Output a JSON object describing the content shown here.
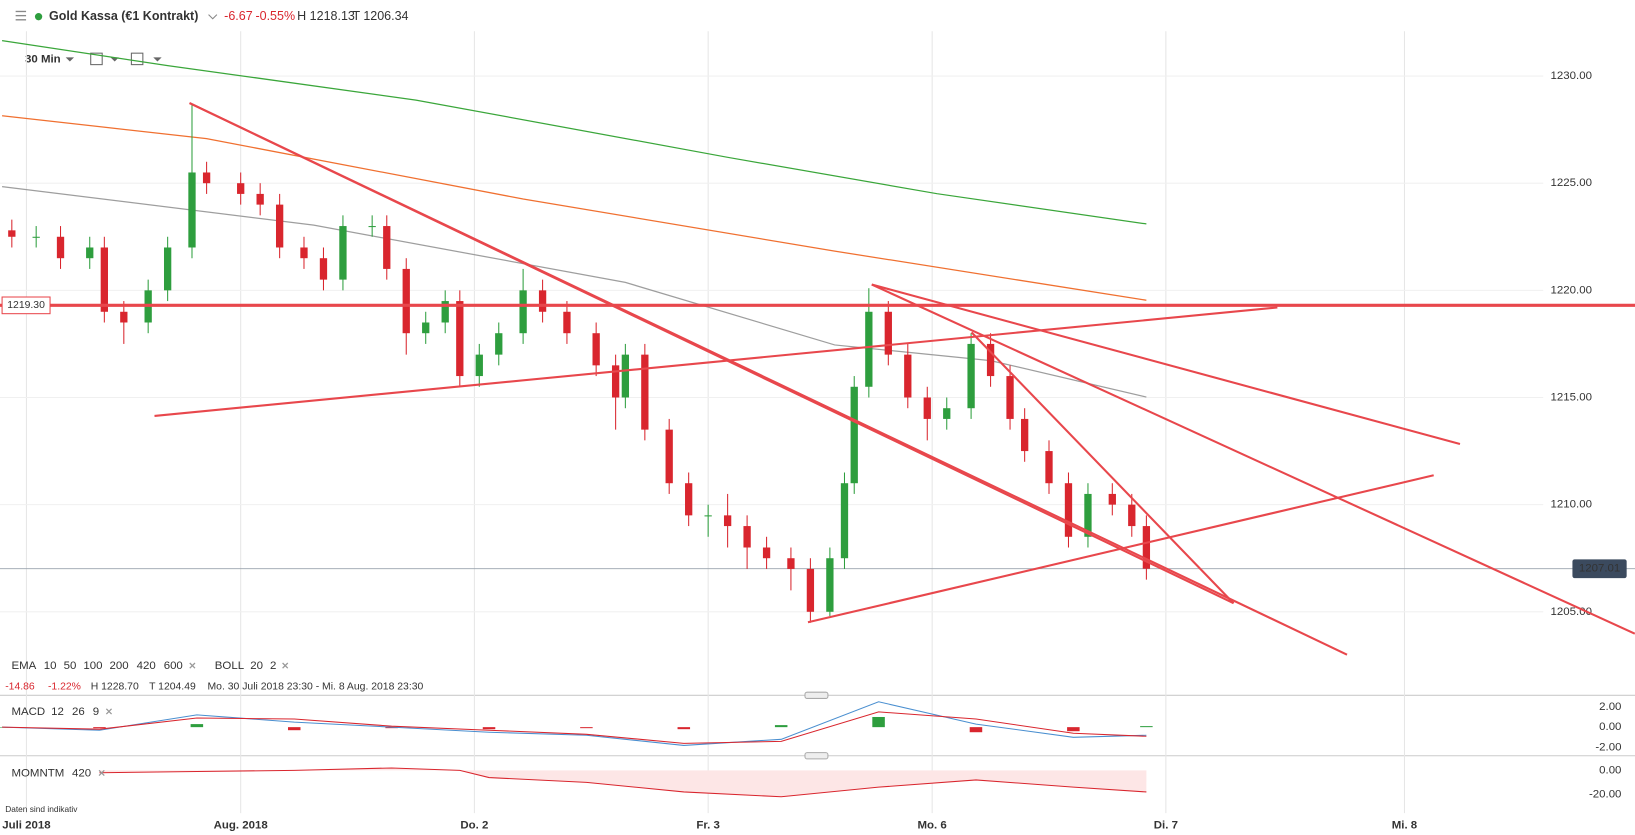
{
  "header": {
    "title": "Gold Kassa (€1 Kontrakt)",
    "change": "-6.67",
    "change_pct": "-0.55%",
    "high": "H 1218.13",
    "low": "T 1206.34",
    "interval": "30 Min"
  },
  "footer": {
    "note": "Daten sind indikativ"
  },
  "chart_data": [
    {
      "type": "candlestick",
      "legend": {
        "ema": "EMA",
        "boll": "BOLL",
        "boll_params": [
          "20",
          "2"
        ],
        "change": "-14.86",
        "change_pct": "-1.22%",
        "high": "H 1228.70",
        "low": "T 1204.49",
        "range": "Mo. 30 Juli 2018 23:30 - Mi. 8 Aug. 2018 23:30"
      },
      "xlim": [
        0,
        335.3
      ],
      "xticks": [
        {
          "value": 5,
          "label": "Juli 2018"
        },
        {
          "value": 49,
          "label": "Aug. 2018"
        },
        {
          "value": 97,
          "label": "Do. 2"
        },
        {
          "value": 145,
          "label": "Fr. 3"
        },
        {
          "value": 191,
          "label": "Mo. 6"
        },
        {
          "value": 239,
          "label": "Di. 7"
        },
        {
          "value": 288,
          "label": "Mi. 8"
        }
      ],
      "ylim": [
        1201.2,
        1231.7
      ],
      "yticks": [
        {
          "value": 1205,
          "label": "1205.00"
        },
        {
          "value": 1210,
          "label": "1210.00"
        },
        {
          "value": 1215,
          "label": "1215.00"
        },
        {
          "value": 1220,
          "label": "1220.00"
        },
        {
          "value": 1225,
          "label": "1225.00"
        },
        {
          "value": 1230,
          "label": "1230.00"
        }
      ],
      "grid": true,
      "up_color": "#2e9e3e",
      "down_color": "#d9262e",
      "x": [
        2,
        7,
        12,
        18,
        21,
        25,
        30,
        34,
        39,
        42,
        49,
        53,
        57,
        62,
        66,
        70,
        76,
        79,
        83,
        87,
        91,
        94,
        98,
        102,
        107,
        111,
        116,
        122,
        126,
        128,
        132,
        137,
        141,
        145,
        149,
        153,
        157,
        162,
        166,
        170,
        173,
        175,
        178,
        182,
        186,
        190,
        194,
        199,
        203,
        207,
        210,
        215,
        219,
        223,
        228,
        232,
        235
      ],
      "open": [
        1222.8,
        1222.5,
        1222.5,
        1221.5,
        1222,
        1219,
        1218.5,
        1220,
        1222,
        1225.5,
        1225,
        1224.5,
        1224,
        1222,
        1221.5,
        1220.5,
        1223,
        1223,
        1221,
        1218,
        1218.5,
        1219.5,
        1216,
        1217,
        1218,
        1220,
        1219,
        1218,
        1216.5,
        1215,
        1217,
        1213.5,
        1211,
        1209.5,
        1209.5,
        1209,
        1208,
        1207.5,
        1207,
        1205,
        1207.5,
        1211,
        1215.5,
        1219,
        1217,
        1215,
        1214,
        1214.5,
        1217.5,
        1216,
        1214,
        1212.5,
        1211,
        1208.5,
        1210.5,
        1210,
        1209
      ],
      "high": [
        1223.3,
        1223,
        1223,
        1222.5,
        1222.5,
        1219.5,
        1220.5,
        1222.5,
        1228.7,
        1226,
        1225.5,
        1225,
        1224.5,
        1222.5,
        1222,
        1223.5,
        1223.5,
        1223.5,
        1221.5,
        1219,
        1220,
        1220,
        1217.5,
        1218.5,
        1221,
        1220.5,
        1219.5,
        1218.5,
        1217,
        1217.5,
        1217.5,
        1214,
        1211.5,
        1210,
        1210.5,
        1209.5,
        1208.5,
        1208,
        1207.5,
        1208,
        1211.5,
        1216,
        1220.1,
        1219.5,
        1217.5,
        1215.5,
        1215,
        1218,
        1218,
        1216.5,
        1214.5,
        1213,
        1211.5,
        1211,
        1211,
        1210.5,
        1209.5
      ],
      "low": [
        1222,
        1222,
        1221,
        1221,
        1218.5,
        1217.5,
        1218,
        1219.5,
        1221.5,
        1224.5,
        1224,
        1223.5,
        1221.5,
        1221,
        1220,
        1220,
        1222.5,
        1220.5,
        1217,
        1217.5,
        1218,
        1215.5,
        1215.5,
        1216.5,
        1217.5,
        1218.5,
        1217.5,
        1216,
        1213.5,
        1214.5,
        1213,
        1210.5,
        1209,
        1208.5,
        1208,
        1207,
        1207,
        1206,
        1204.49,
        1204.8,
        1207,
        1210.5,
        1215,
        1216.5,
        1214.5,
        1213,
        1213.5,
        1214,
        1215.5,
        1213.5,
        1212,
        1210.5,
        1208,
        1208,
        1209.5,
        1208.5,
        1206.5
      ],
      "close": [
        1222.5,
        1222.5,
        1221.5,
        1222,
        1219,
        1218.5,
        1220,
        1222,
        1225.5,
        1225,
        1224.5,
        1224,
        1222,
        1221.5,
        1220.5,
        1223,
        1223,
        1221,
        1218,
        1218.5,
        1219.5,
        1216,
        1217,
        1218,
        1220,
        1219,
        1218,
        1216.5,
        1215,
        1217,
        1213.5,
        1211,
        1209.5,
        1209.5,
        1209,
        1208,
        1207.5,
        1207,
        1205,
        1207.5,
        1211,
        1215.5,
        1219,
        1217,
        1215,
        1214,
        1214.5,
        1217.5,
        1216,
        1214,
        1212.5,
        1211,
        1208.5,
        1210.5,
        1210,
        1209,
        1207.01
      ],
      "series": [
        {
          "name": "10",
          "color": "#333c4e"
        },
        {
          "name": "50",
          "color": "#2a9fb8"
        },
        {
          "name": "100",
          "color": "#e0a030"
        },
        {
          "name": "200",
          "color": "#9e9e9e",
          "x": [
            0,
            64,
            128,
            171,
            203,
            235
          ],
          "values": [
            1224.84,
            1223.04,
            1220.37,
            1217.45,
            1216.72,
            1215.02
          ]
        },
        {
          "name": "420",
          "color": "#f07030",
          "x": [
            0,
            42,
            107,
            171,
            235
          ],
          "values": [
            1228.15,
            1227.08,
            1224.26,
            1221.83,
            1219.54
          ]
        },
        {
          "name": "600",
          "color": "#3aa63a",
          "x": [
            0,
            34,
            85,
            149,
            192,
            235
          ],
          "values": [
            1231.65,
            1230.49,
            1228.88,
            1226.21,
            1224.51,
            1223.1
          ]
        }
      ],
      "horizontal_line": {
        "value": 1219.3,
        "label": "1219.30"
      },
      "last_price": {
        "value": 1207.01,
        "label": "1207.01"
      },
      "trendline_color": "#e8474c",
      "trendlines": [
        {
          "x": [
            38.5,
            276.2
          ],
          "values": [
            1228.74,
            1203.0
          ]
        },
        {
          "x": [
            38.5,
            252.9
          ],
          "values": [
            1228.74,
            1205.4
          ]
        },
        {
          "x": [
            31.3,
            261.9
          ],
          "values": [
            1214.14,
            1219.2
          ]
        },
        {
          "x": [
            165.5,
            294
          ],
          "values": [
            1204.51,
            1211.37
          ]
        },
        {
          "x": [
            178.6,
            299.4
          ],
          "values": [
            1220.27,
            1212.83
          ]
        },
        {
          "x": [
            178.6,
            335.3
          ],
          "values": [
            1220.27,
            1203.98
          ]
        },
        {
          "x": [
            199.1,
            252.9
          ],
          "values": [
            1218.04,
            1205.4
          ]
        }
      ]
    },
    {
      "type": "macd",
      "name": "MACD",
      "params": [
        "12",
        "26",
        "9"
      ],
      "ylim": [
        -2.51,
        2.62
      ],
      "yticks": [
        {
          "value": -2,
          "label": "-2.00"
        },
        {
          "value": 0,
          "label": "0.00"
        },
        {
          "value": 2,
          "label": "2.00"
        }
      ],
      "x": [
        0,
        20,
        40,
        60,
        80,
        100,
        120,
        140,
        160,
        180,
        200,
        220,
        235
      ],
      "macd": [
        0,
        -0.3,
        1.2,
        0.5,
        0,
        -0.5,
        -0.8,
        -1.8,
        -1.2,
        2.5,
        0.3,
        -1.0,
        -0.8
      ],
      "signal": [
        0,
        -0.2,
        0.9,
        0.8,
        0.1,
        -0.3,
        -0.7,
        -1.6,
        -1.4,
        1.5,
        0.8,
        -0.6,
        -0.9
      ],
      "histogram": [
        0,
        -0.1,
        0.3,
        -0.3,
        -0.1,
        -0.2,
        -0.1,
        -0.2,
        0.2,
        1.0,
        -0.5,
        -0.4,
        0.1
      ],
      "macd_color": "#4a8fd0",
      "signal_color": "#d9262e",
      "up_color": "#2e9e3e",
      "down_color": "#d9262e"
    },
    {
      "type": "area",
      "name": "MOMNTM",
      "params": [
        "420"
      ],
      "ylim": [
        -25.2,
        7.8
      ],
      "yticks": [
        {
          "value": -20,
          "label": "-20.00"
        },
        {
          "value": 0,
          "label": "0.00"
        }
      ],
      "x": [
        20,
        40,
        60,
        80,
        94,
        100,
        120,
        140,
        160,
        180,
        200,
        220,
        235
      ],
      "values": [
        -2,
        -1,
        0,
        2,
        0,
        -6,
        -10,
        -18,
        -22,
        -14,
        -8,
        -14,
        -18
      ],
      "color": "#d9262e",
      "fill": "#fde6e6"
    }
  ]
}
